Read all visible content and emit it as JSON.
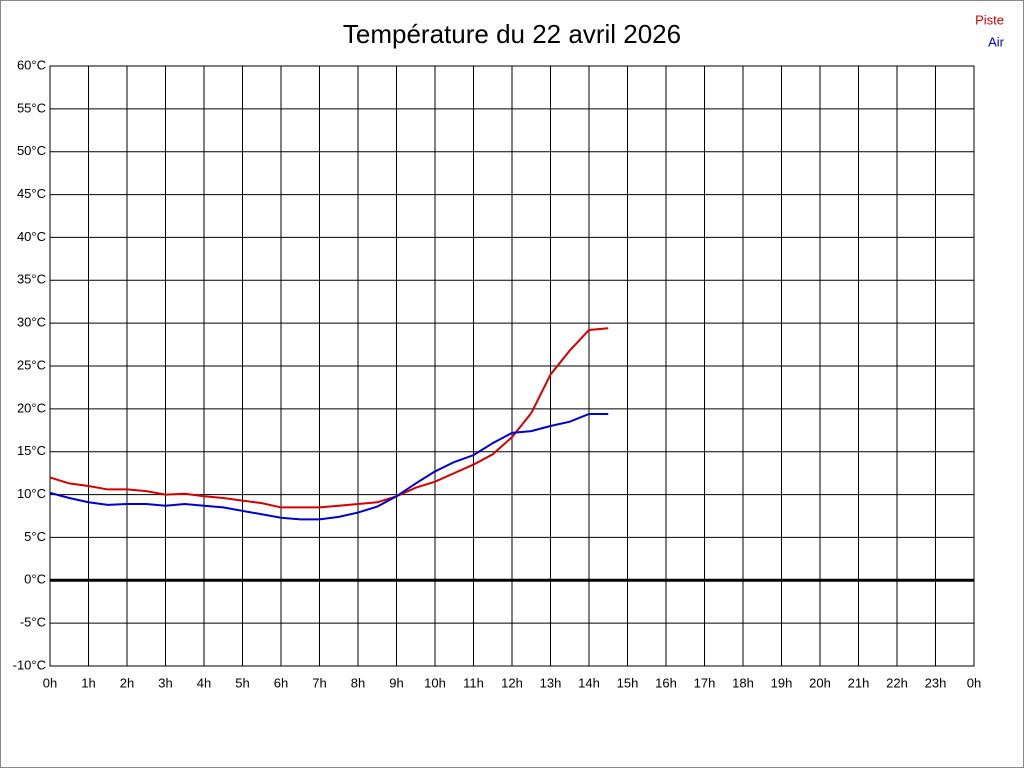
{
  "chart_data": {
    "type": "line",
    "title": "Température du 22 avril 2026",
    "x": [
      0,
      0.5,
      1,
      1.5,
      2,
      2.5,
      3,
      3.5,
      4,
      4.5,
      5,
      5.5,
      6,
      6.5,
      7,
      7.5,
      8,
      8.5,
      9,
      9.5,
      10,
      10.5,
      11,
      11.5,
      12,
      12.5,
      13,
      13.5,
      14,
      14.5
    ],
    "series": [
      {
        "name": "Piste",
        "color": "#d40000",
        "values": [
          12.0,
          11.3,
          11.0,
          10.6,
          10.6,
          10.4,
          10.0,
          10.1,
          9.8,
          9.6,
          9.3,
          9.0,
          8.5,
          8.5,
          8.5,
          8.7,
          8.9,
          9.1,
          9.8,
          10.8,
          11.5,
          12.5,
          13.5,
          14.7,
          16.7,
          19.5,
          24.0,
          26.8,
          29.2,
          29.4
        ]
      },
      {
        "name": "Air",
        "color": "#0000cc",
        "values": [
          10.2,
          9.6,
          9.1,
          8.8,
          8.9,
          8.9,
          8.7,
          8.9,
          8.7,
          8.5,
          8.1,
          7.7,
          7.3,
          7.1,
          7.1,
          7.4,
          7.9,
          8.6,
          9.8,
          11.3,
          12.7,
          13.8,
          14.6,
          16.0,
          17.2,
          17.4,
          18.0,
          18.5,
          19.4,
          19.4
        ]
      }
    ],
    "xlim": [
      0,
      24
    ],
    "xticks": [
      {
        "value": 0,
        "label": "0h"
      },
      {
        "value": 1,
        "label": "1h"
      },
      {
        "value": 2,
        "label": "2h"
      },
      {
        "value": 3,
        "label": "3h"
      },
      {
        "value": 4,
        "label": "4h"
      },
      {
        "value": 5,
        "label": "5h"
      },
      {
        "value": 6,
        "label": "6h"
      },
      {
        "value": 7,
        "label": "7h"
      },
      {
        "value": 8,
        "label": "8h"
      },
      {
        "value": 9,
        "label": "9h"
      },
      {
        "value": 10,
        "label": "10h"
      },
      {
        "value": 11,
        "label": "11h"
      },
      {
        "value": 12,
        "label": "12h"
      },
      {
        "value": 13,
        "label": "13h"
      },
      {
        "value": 14,
        "label": "14h"
      },
      {
        "value": 15,
        "label": "15h"
      },
      {
        "value": 16,
        "label": "16h"
      },
      {
        "value": 17,
        "label": "17h"
      },
      {
        "value": 18,
        "label": "18h"
      },
      {
        "value": 19,
        "label": "19h"
      },
      {
        "value": 20,
        "label": "20h"
      },
      {
        "value": 21,
        "label": "21h"
      },
      {
        "value": 22,
        "label": "22h"
      },
      {
        "value": 23,
        "label": "23h"
      },
      {
        "value": 24,
        "label": "0h"
      }
    ],
    "ylim": [
      -10,
      60
    ],
    "yticks": [
      {
        "value": -10,
        "label": "-10°C"
      },
      {
        "value": -5,
        "label": "-5°C"
      },
      {
        "value": 0,
        "label": "0°C"
      },
      {
        "value": 5,
        "label": "5°C"
      },
      {
        "value": 10,
        "label": "10°C"
      },
      {
        "value": 15,
        "label": "15°C"
      },
      {
        "value": 20,
        "label": "20°C"
      },
      {
        "value": 25,
        "label": "25°C"
      },
      {
        "value": 30,
        "label": "30°C"
      },
      {
        "value": 35,
        "label": "35°C"
      },
      {
        "value": 40,
        "label": "40°C"
      },
      {
        "value": 45,
        "label": "45°C"
      },
      {
        "value": 50,
        "label": "50°C"
      },
      {
        "value": 55,
        "label": "55°C"
      },
      {
        "value": 60,
        "label": "60°C"
      }
    ],
    "grid": true,
    "legend": "top-right"
  }
}
